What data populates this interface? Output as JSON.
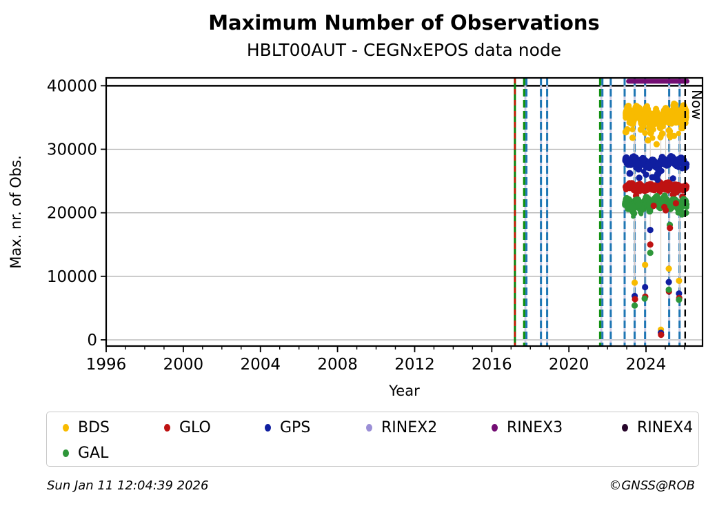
{
  "chart_data": {
    "type": "scatter",
    "title": "Maximum Number of Observations",
    "subtitle": "HBLT00AUT - CEGNxEPOS data node",
    "xlabel": "Year",
    "ylabel": "Max. nr. of Obs.",
    "xlim": [
      1996.0,
      2026.93
    ],
    "ylim": [
      -980,
      41235
    ],
    "x_major_ticks": [
      1996,
      2000,
      2004,
      2008,
      2012,
      2016,
      2020,
      2024
    ],
    "x_minor_step": 1,
    "y_major_ticks": [
      0,
      10000,
      20000,
      30000,
      40000
    ],
    "grid": "horizontal",
    "grid_color": "#b0b0b0",
    "max_obs_line": {
      "y": 40000,
      "color": "#000000"
    },
    "now": {
      "x": 2026.03,
      "label": "Now",
      "color": "#000000"
    },
    "rinex3_band": {
      "name": "RINEX3",
      "x0": 2023.09,
      "x1": 2026.13,
      "value": 40700,
      "color": "#730d73"
    },
    "event_line_colors": {
      "blue": "#1f77b4",
      "green": "#129112",
      "green_solid": "#0a800a",
      "red": "#cc1100",
      "lavender_base": "#cdcde6"
    },
    "event_lines": [
      {
        "x": 2017.2,
        "style": "green-solid-red-dash"
      },
      {
        "x": 2017.74,
        "style": "green-blue-dash"
      },
      {
        "x": 2018.55,
        "style": "blue-dash"
      },
      {
        "x": 2018.87,
        "style": "blue-dash"
      },
      {
        "x": 2021.68,
        "style": "green-blue-dash"
      },
      {
        "x": 2022.17,
        "style": "blue-dash"
      },
      {
        "x": 2022.89,
        "style": "blue-dash"
      },
      {
        "x": 2023.41,
        "style": "blue-dash"
      },
      {
        "x": 2023.95,
        "style": "blue-dash"
      },
      {
        "x": 2025.2,
        "style": "blue-dash"
      },
      {
        "x": 2025.74,
        "style": "blue-dash"
      }
    ],
    "series": [
      {
        "name": "BDS",
        "color": "#f8bb00",
        "x0": 2022.93,
        "x1": 2026.1,
        "level": 35200,
        "wave": 750,
        "wave2": 450,
        "spread": 950,
        "tail": 2700,
        "tail_p": 0.06,
        "n": 950
      },
      {
        "name": "GPS",
        "color": "#101fa0",
        "x0": 2022.93,
        "x1": 2026.1,
        "level": 27900,
        "wave": 380,
        "wave2": 260,
        "spread": 520,
        "tail": 1900,
        "tail_p": 0.05,
        "n": 720
      },
      {
        "name": "GLO",
        "color": "#be1212",
        "x0": 2022.93,
        "x1": 2026.1,
        "level": 24100,
        "wave": 240,
        "wave2": 160,
        "spread": 420,
        "tail": 1100,
        "tail_p": 0.04,
        "n": 680
      },
      {
        "name": "GAL",
        "color": "#2e9639",
        "x0": 2022.93,
        "x1": 2026.1,
        "level": 21500,
        "wave": 480,
        "wave2": 280,
        "spread": 620,
        "tail": 1400,
        "tail_p": 0.06,
        "n": 740
      }
    ],
    "outliers": [
      {
        "s": "BDS",
        "x": 2023.41,
        "y": 9000
      },
      {
        "s": "GPS",
        "x": 2023.41,
        "y": 6900
      },
      {
        "s": "GLO",
        "x": 2023.43,
        "y": 6400
      },
      {
        "s": "GAL",
        "x": 2023.41,
        "y": 5400
      },
      {
        "s": "BDS",
        "x": 2023.95,
        "y": 11800
      },
      {
        "s": "GPS",
        "x": 2023.95,
        "y": 8300
      },
      {
        "s": "GLO",
        "x": 2023.96,
        "y": 6800
      },
      {
        "s": "GAL",
        "x": 2023.93,
        "y": 6500
      },
      {
        "s": "GPS",
        "x": 2024.22,
        "y": 17300
      },
      {
        "s": "GLO",
        "x": 2024.22,
        "y": 15000
      },
      {
        "s": "GAL",
        "x": 2024.22,
        "y": 13700
      },
      {
        "s": "BDS",
        "x": 2024.77,
        "y": 1600
      },
      {
        "s": "GPS",
        "x": 2024.77,
        "y": 1100
      },
      {
        "s": "GLO",
        "x": 2024.78,
        "y": 800
      },
      {
        "s": "GLO",
        "x": 2025.02,
        "y": 20400
      },
      {
        "s": "GAL",
        "x": 2025.23,
        "y": 18100
      },
      {
        "s": "GLO",
        "x": 2025.24,
        "y": 17600
      },
      {
        "s": "BDS",
        "x": 2025.18,
        "y": 11200
      },
      {
        "s": "GPS",
        "x": 2025.18,
        "y": 9100
      },
      {
        "s": "GLO",
        "x": 2025.19,
        "y": 7600
      },
      {
        "s": "GAL",
        "x": 2025.18,
        "y": 7900
      },
      {
        "s": "BDS",
        "x": 2025.71,
        "y": 9300
      },
      {
        "s": "GPS",
        "x": 2025.71,
        "y": 7300
      },
      {
        "s": "GLO",
        "x": 2025.72,
        "y": 6600
      },
      {
        "s": "GAL",
        "x": 2025.71,
        "y": 6300
      },
      {
        "s": "GPS",
        "x": 2024.0,
        "y": 26000
      },
      {
        "s": "GPS",
        "x": 2024.32,
        "y": 25600
      },
      {
        "s": "GPS",
        "x": 2024.6,
        "y": 25200
      },
      {
        "s": "GPS",
        "x": 2025.4,
        "y": 25400
      },
      {
        "s": "GLO",
        "x": 2024.4,
        "y": 21100
      },
      {
        "s": "GLO",
        "x": 2024.95,
        "y": 20900
      },
      {
        "s": "GLO",
        "x": 2025.55,
        "y": 21500
      },
      {
        "s": "BDS",
        "x": 2023.3,
        "y": 31800
      },
      {
        "s": "BDS",
        "x": 2024.1,
        "y": 31400
      },
      {
        "s": "BDS",
        "x": 2024.55,
        "y": 30800
      },
      {
        "s": "BDS",
        "x": 2024.75,
        "y": 31900
      },
      {
        "s": "BDS",
        "x": 2025.45,
        "y": 32100
      }
    ],
    "drop_lines": [
      2023.41,
      2023.95,
      2024.22,
      2024.77,
      2025.02,
      2025.2,
      2025.74
    ],
    "drop_line_color": "#d8cfc5"
  },
  "legend": {
    "items": [
      {
        "label": "BDS",
        "color": "#f8bb00"
      },
      {
        "label": "GLO",
        "color": "#be1212"
      },
      {
        "label": "GPS",
        "color": "#101fa0"
      },
      {
        "label": "RINEX2",
        "color": "#9b8fd6"
      },
      {
        "label": "RINEX3",
        "color": "#730d73"
      },
      {
        "label": "RINEX4",
        "color": "#27062b"
      },
      {
        "label": "GAL",
        "color": "#2e9639"
      }
    ]
  },
  "footer": {
    "timestamp": "Sun Jan 11 12:04:39 2026",
    "copyright": "©GNSS@ROB"
  }
}
